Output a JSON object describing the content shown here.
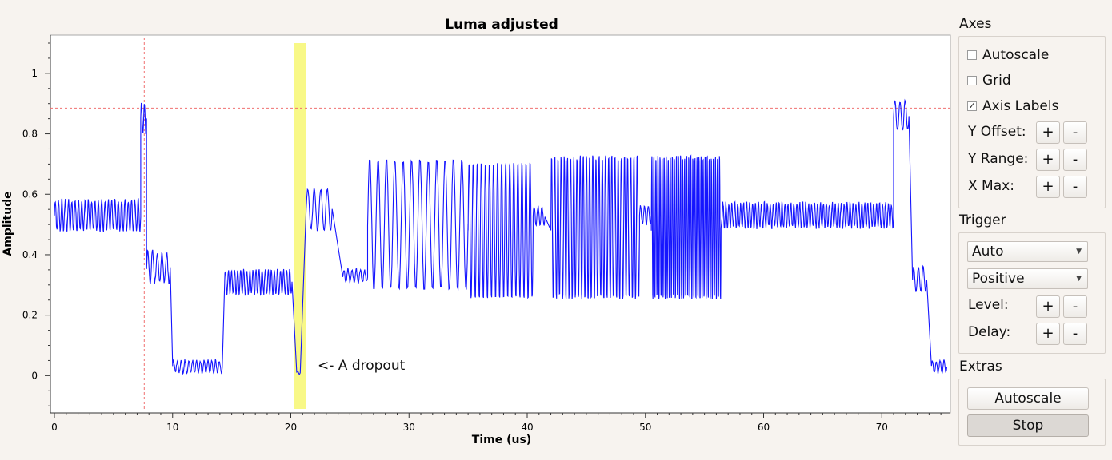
{
  "plot": {
    "title": "Luma adjusted",
    "xlabel": "Time (us)",
    "ylabel": "Amplitude",
    "annotation": "<- A dropout",
    "colors": {
      "trace": "#1515ff",
      "marker": "#f07070",
      "highlight": "#f7f77a"
    }
  },
  "chart_data": {
    "type": "line",
    "title": "Luma adjusted",
    "xlabel": "Time (us)",
    "ylabel": "Amplitude",
    "xlim": [
      0,
      75.6
    ],
    "ylim": [
      -0.11,
      1.1
    ],
    "x_ticks": [
      0,
      10,
      20,
      30,
      40,
      50,
      60,
      70
    ],
    "y_ticks": [
      0,
      0.2,
      0.4,
      0.6,
      0.8,
      1
    ],
    "grid": false,
    "marker_x": 7.6,
    "marker_y": 0.885,
    "highlight_span": [
      20.3,
      21.3
    ],
    "series": [
      {
        "segments": [
          {
            "x0": 0,
            "x1": 7.3,
            "base": 0.53,
            "amp": 0.05,
            "cycles": 26,
            "noise": 0.015
          },
          {
            "x0": 7.3,
            "x1": 7.8,
            "base": 0.85,
            "amp": 0.05,
            "cycles": 2,
            "noise": 0.01
          },
          {
            "x0": 7.8,
            "x1": 9.8,
            "base": 0.36,
            "amp": 0.05,
            "cycles": 5,
            "noise": 0.02
          },
          {
            "x0": 10.0,
            "x1": 14.2,
            "base": 0.03,
            "amp": 0.02,
            "cycles": 13,
            "noise": 0.01
          },
          {
            "x0": 14.4,
            "x1": 20.1,
            "base": 0.31,
            "amp": 0.04,
            "cycles": 22,
            "noise": 0.01
          },
          {
            "x0": 20.5,
            "x1": 20.8,
            "base": 0.01,
            "amp": 0.005,
            "cycles": 1,
            "noise": 0
          },
          {
            "x0": 21.3,
            "x1": 23.5,
            "base": 0.55,
            "amp": 0.07,
            "cycles": 4,
            "noise": 0.01
          },
          {
            "x0": 24.4,
            "x1": 26.5,
            "base": 0.33,
            "amp": 0.02,
            "cycles": 6,
            "noise": 0.01
          },
          {
            "x0": 26.5,
            "x1": 35.0,
            "base": 0.5,
            "amp": 0.22,
            "cycles": 12,
            "noise": 0.01
          },
          {
            "x0": 35.0,
            "x1": 40.5,
            "base": 0.48,
            "amp": 0.23,
            "cycles": 16,
            "noise": 0.01
          },
          {
            "x0": 40.5,
            "x1": 41.5,
            "base": 0.53,
            "amp": 0.03,
            "cycles": 3,
            "noise": 0.01
          },
          {
            "x0": 42.0,
            "x1": 49.5,
            "base": 0.49,
            "amp": 0.24,
            "cycles": 28,
            "noise": 0.02
          },
          {
            "x0": 49.5,
            "x1": 50.5,
            "base": 0.53,
            "amp": 0.03,
            "cycles": 3,
            "noise": 0.01
          },
          {
            "x0": 50.5,
            "x1": 56.4,
            "base": 0.49,
            "amp": 0.24,
            "cycles": 34,
            "noise": 0.02
          },
          {
            "x0": 56.5,
            "x1": 71.0,
            "base": 0.53,
            "amp": 0.04,
            "cycles": 58,
            "noise": 0.015
          },
          {
            "x0": 71.0,
            "x1": 72.3,
            "base": 0.86,
            "amp": 0.05,
            "cycles": 3,
            "noise": 0.01
          },
          {
            "x0": 72.6,
            "x1": 73.8,
            "base": 0.32,
            "amp": 0.04,
            "cycles": 3,
            "noise": 0.01
          },
          {
            "x0": 74.2,
            "x1": 75.5,
            "base": 0.03,
            "amp": 0.02,
            "cycles": 4,
            "noise": 0.01
          }
        ]
      }
    ]
  },
  "axes": {
    "title": "Axes",
    "autoscale_label": "Autoscale",
    "autoscale_checked": false,
    "grid_label": "Grid",
    "grid_checked": false,
    "axis_labels_label": "Axis Labels",
    "axis_labels_checked": true,
    "y_offset_label": "Y Offset:",
    "y_range_label": "Y Range:",
    "x_max_label": "X Max:",
    "plus": "+",
    "minus": "-"
  },
  "trigger": {
    "title": "Trigger",
    "mode_value": "Auto",
    "slope_value": "Positive",
    "level_label": "Level:",
    "delay_label": "Delay:",
    "plus": "+",
    "minus": "-"
  },
  "extras": {
    "title": "Extras",
    "autoscale_button": "Autoscale",
    "stop_button": "Stop"
  }
}
